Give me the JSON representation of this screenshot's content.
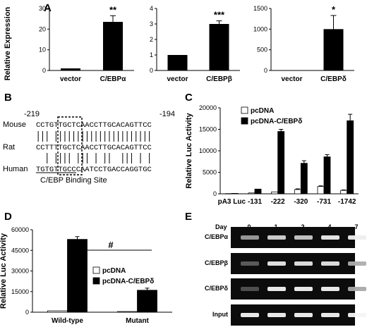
{
  "panels": {
    "A": {
      "label": "A",
      "ylabel": "Relative Expression"
    },
    "B": {
      "label": "B"
    },
    "C": {
      "label": "C"
    },
    "D": {
      "label": "D"
    },
    "E": {
      "label": "E"
    }
  },
  "sequence_panel": {
    "start_pos": "-219",
    "end_pos": "-194",
    "rows": [
      {
        "species": "Mouse",
        "sequence": "CCTGTTGCTCAACCTTGCACAGTTCC"
      },
      {
        "species": "Rat",
        "sequence": "CCTTTTGCTCAACCTTGCACAGTTCC"
      },
      {
        "species": "Human",
        "sequence": "TGTGTTGCCCAATCCTGACCAGGTGC"
      }
    ],
    "caption": "C/EBP Binding Site"
  },
  "gel_panel": {
    "day_label": "Day",
    "days": [
      "0",
      "1",
      "2",
      "4",
      "7"
    ],
    "lanes": [
      {
        "name": "C/EBPα",
        "intensity": [
          0.55,
          0.8,
          0.75,
          0.92,
          0.92
        ]
      },
      {
        "name": "C/EBPβ",
        "intensity": [
          0.25,
          0.9,
          0.88,
          0.88,
          0.62
        ]
      },
      {
        "name": "C/EBPδ",
        "intensity": [
          0.2,
          0.95,
          0.95,
          0.95,
          0.6
        ]
      },
      {
        "name": "Input",
        "intensity": [
          0.95,
          0.95,
          0.95,
          0.95,
          0.95
        ]
      }
    ]
  },
  "chart_data": [
    {
      "panel": "A",
      "type": "bar",
      "ylabel": "Relative Expression",
      "categories": [
        "vector",
        "C/EBPα"
      ],
      "values": [
        1,
        23.5
      ],
      "errors": [
        0,
        3
      ],
      "significance": [
        "",
        "**"
      ],
      "ylim": [
        0,
        30
      ],
      "yticks": [
        0,
        10,
        20,
        30
      ]
    },
    {
      "panel": "A",
      "type": "bar",
      "categories": [
        "vector",
        "C/EBPβ"
      ],
      "values": [
        1,
        3.0
      ],
      "errors": [
        0,
        0.2
      ],
      "significance": [
        "",
        "***"
      ],
      "ylim": [
        0,
        4
      ],
      "yticks": [
        0,
        1,
        2,
        3,
        4
      ]
    },
    {
      "panel": "A",
      "type": "bar",
      "categories": [
        "vector",
        "C/EBPδ"
      ],
      "values": [
        5,
        1000
      ],
      "errors": [
        0,
        330
      ],
      "significance": [
        "",
        "*"
      ],
      "ylim": [
        0,
        1500
      ],
      "yticks": [
        0,
        500,
        1000,
        1500
      ]
    },
    {
      "panel": "C",
      "type": "bar",
      "ylabel": "Relative Luc Activity",
      "categories": [
        "pA3 Luc",
        "-131",
        "-222",
        "-320",
        "-731",
        "-1742"
      ],
      "series": [
        {
          "name": "pcDNA",
          "values": [
            50,
            200,
            450,
            1000,
            1700,
            800
          ],
          "errors": [
            0,
            0,
            0,
            150,
            150,
            100
          ]
        },
        {
          "name": "pcDNA-C/EBPδ",
          "values": [
            100,
            1100,
            14500,
            7100,
            8600,
            17000
          ],
          "errors": [
            0,
            0,
            500,
            600,
            500,
            1500
          ]
        }
      ],
      "ylim": [
        0,
        20000
      ],
      "yticks": [
        0,
        5000,
        10000,
        15000,
        20000
      ]
    },
    {
      "panel": "D",
      "type": "bar",
      "ylabel": "Relative Luc Activity",
      "categories": [
        "Wild-type",
        "Mutant"
      ],
      "series": [
        {
          "name": "pcDNA",
          "values": [
            1000,
            500
          ],
          "errors": [
            0,
            0
          ]
        },
        {
          "name": "pcDNA-C/EBPδ",
          "values": [
            53000,
            16000
          ],
          "errors": [
            2000,
            1500
          ]
        }
      ],
      "significance": "#",
      "ylim": [
        0,
        60000
      ],
      "yticks": [
        0,
        15000,
        30000,
        45000,
        60000
      ]
    }
  ]
}
